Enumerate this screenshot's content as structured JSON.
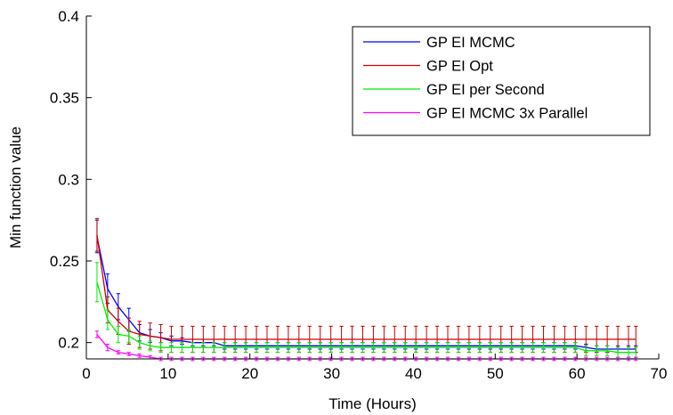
{
  "chart_data": {
    "type": "line",
    "xlabel": "Time (Hours)",
    "ylabel": "Min function value",
    "xlim": [
      0,
      70
    ],
    "ylim": [
      0.19,
      0.4
    ],
    "xticks": [
      0,
      10,
      20,
      30,
      40,
      50,
      60,
      70
    ],
    "xtick_labels": [
      "0",
      "10",
      "20",
      "30",
      "40",
      "50",
      "60",
      "70"
    ],
    "yticks": [
      0.2,
      0.25,
      0.3,
      0.35,
      0.4
    ],
    "ytick_labels": [
      "0.2",
      "0.25",
      "0.3",
      "0.35",
      "0.4"
    ],
    "grid": false,
    "legend_position": "top-right",
    "x": [
      1.3,
      2.6,
      3.9,
      5.2,
      6.5,
      7.8,
      9.1,
      10.4,
      11.7,
      13,
      14.3,
      15.6,
      16.9,
      18.2,
      19.5,
      20.8,
      22.1,
      23.4,
      24.7,
      26,
      27.3,
      28.6,
      29.9,
      31.2,
      32.5,
      33.8,
      35.1,
      36.4,
      37.7,
      39,
      40.3,
      41.6,
      42.9,
      44.2,
      45.5,
      46.8,
      48.1,
      49.4,
      50.7,
      52,
      53.3,
      54.6,
      55.9,
      57.2,
      58.5,
      59.8,
      61.1,
      62.4,
      63.7,
      65,
      66.3,
      67.2
    ],
    "series": [
      {
        "name": "GP EI MCMC",
        "color": "#0000ff",
        "values": [
          0.265,
          0.233,
          0.222,
          0.214,
          0.206,
          0.204,
          0.203,
          0.201,
          0.201,
          0.2,
          0.2,
          0.2,
          0.198,
          0.198,
          0.198,
          0.198,
          0.198,
          0.198,
          0.198,
          0.198,
          0.198,
          0.198,
          0.198,
          0.198,
          0.198,
          0.198,
          0.198,
          0.198,
          0.198,
          0.198,
          0.198,
          0.198,
          0.198,
          0.198,
          0.198,
          0.198,
          0.198,
          0.198,
          0.198,
          0.198,
          0.198,
          0.198,
          0.198,
          0.198,
          0.198,
          0.198,
          0.197,
          0.196,
          0.196,
          0.196,
          0.196,
          0.196
        ],
        "errors": [
          0.01,
          0.009,
          0.008,
          0.007,
          0.005,
          0.004,
          0.003,
          0.003,
          0.002,
          0.002,
          0.002,
          0.002,
          0.002,
          0.002,
          0.002,
          0.002,
          0.002,
          0.002,
          0.002,
          0.002,
          0.002,
          0.002,
          0.002,
          0.002,
          0.002,
          0.002,
          0.002,
          0.002,
          0.002,
          0.002,
          0.002,
          0.002,
          0.002,
          0.002,
          0.002,
          0.002,
          0.002,
          0.002,
          0.002,
          0.002,
          0.002,
          0.002,
          0.002,
          0.002,
          0.002,
          0.002,
          0.002,
          0.002,
          0.002,
          0.002,
          0.002,
          0.002
        ]
      },
      {
        "name": "GP EI Opt",
        "color": "#cc0000",
        "values": [
          0.266,
          0.22,
          0.213,
          0.207,
          0.205,
          0.204,
          0.203,
          0.202,
          0.202,
          0.202,
          0.202,
          0.202,
          0.202,
          0.202,
          0.202,
          0.202,
          0.202,
          0.202,
          0.202,
          0.202,
          0.202,
          0.202,
          0.202,
          0.202,
          0.202,
          0.202,
          0.202,
          0.202,
          0.202,
          0.202,
          0.202,
          0.202,
          0.202,
          0.202,
          0.202,
          0.202,
          0.202,
          0.202,
          0.202,
          0.202,
          0.202,
          0.202,
          0.202,
          0.202,
          0.202,
          0.202,
          0.202,
          0.202,
          0.202,
          0.202,
          0.202,
          0.202
        ],
        "errors": [
          0.01,
          0.008,
          0.008,
          0.008,
          0.008,
          0.008,
          0.008,
          0.008,
          0.008,
          0.008,
          0.008,
          0.008,
          0.008,
          0.008,
          0.008,
          0.008,
          0.008,
          0.008,
          0.008,
          0.008,
          0.008,
          0.008,
          0.008,
          0.008,
          0.008,
          0.008,
          0.008,
          0.008,
          0.008,
          0.008,
          0.008,
          0.008,
          0.008,
          0.008,
          0.008,
          0.008,
          0.008,
          0.008,
          0.008,
          0.008,
          0.008,
          0.008,
          0.008,
          0.008,
          0.008,
          0.008,
          0.008,
          0.008,
          0.008,
          0.008,
          0.008,
          0.008
        ]
      },
      {
        "name": "GP EI per Second",
        "color": "#00ee00",
        "values": [
          0.237,
          0.214,
          0.205,
          0.204,
          0.2,
          0.198,
          0.197,
          0.197,
          0.197,
          0.197,
          0.197,
          0.197,
          0.197,
          0.197,
          0.197,
          0.197,
          0.197,
          0.197,
          0.197,
          0.197,
          0.197,
          0.197,
          0.197,
          0.197,
          0.197,
          0.197,
          0.197,
          0.197,
          0.197,
          0.197,
          0.197,
          0.197,
          0.197,
          0.197,
          0.197,
          0.197,
          0.197,
          0.197,
          0.197,
          0.197,
          0.197,
          0.197,
          0.197,
          0.197,
          0.197,
          0.197,
          0.195,
          0.195,
          0.195,
          0.194,
          0.194,
          0.194
        ],
        "errors": [
          0.012,
          0.006,
          0.005,
          0.004,
          0.004,
          0.003,
          0.003,
          0.003,
          0.003,
          0.003,
          0.003,
          0.003,
          0.003,
          0.003,
          0.003,
          0.003,
          0.003,
          0.003,
          0.003,
          0.003,
          0.003,
          0.003,
          0.003,
          0.003,
          0.003,
          0.003,
          0.003,
          0.003,
          0.003,
          0.003,
          0.003,
          0.003,
          0.003,
          0.003,
          0.003,
          0.003,
          0.003,
          0.003,
          0.003,
          0.003,
          0.003,
          0.003,
          0.003,
          0.003,
          0.003,
          0.003,
          0.003,
          0.003,
          0.003,
          0.003,
          0.003,
          0.003
        ]
      },
      {
        "name": "GP EI MCMC 3x Parallel",
        "color": "#ff00ff",
        "values": [
          0.205,
          0.197,
          0.194,
          0.193,
          0.192,
          0.191,
          0.19,
          0.19,
          0.19,
          0.19,
          0.19,
          0.19,
          0.19,
          0.19,
          0.19,
          0.19,
          0.19,
          0.19,
          0.19,
          0.19,
          0.19,
          0.19,
          0.19,
          0.19,
          0.19,
          0.19,
          0.19,
          0.19,
          0.19,
          0.19,
          0.19,
          0.19,
          0.19,
          0.19,
          0.19,
          0.19,
          0.19,
          0.19,
          0.19,
          0.19,
          0.19,
          0.19,
          0.19,
          0.19,
          0.19,
          0.19,
          0.19,
          0.19,
          0.19,
          0.19,
          0.19,
          0.19
        ],
        "errors": [
          0.002,
          0.002,
          0.001,
          0.001,
          0.001,
          0.001,
          0.001,
          0.001,
          0.001,
          0.001,
          0.001,
          0.001,
          0.001,
          0.001,
          0.001,
          0.001,
          0.001,
          0.001,
          0.001,
          0.001,
          0.001,
          0.001,
          0.001,
          0.001,
          0.001,
          0.001,
          0.001,
          0.001,
          0.001,
          0.001,
          0.001,
          0.001,
          0.001,
          0.001,
          0.001,
          0.001,
          0.001,
          0.001,
          0.001,
          0.001,
          0.001,
          0.001,
          0.001,
          0.001,
          0.001,
          0.001,
          0.001,
          0.001,
          0.001,
          0.001,
          0.001,
          0.001
        ]
      }
    ]
  }
}
